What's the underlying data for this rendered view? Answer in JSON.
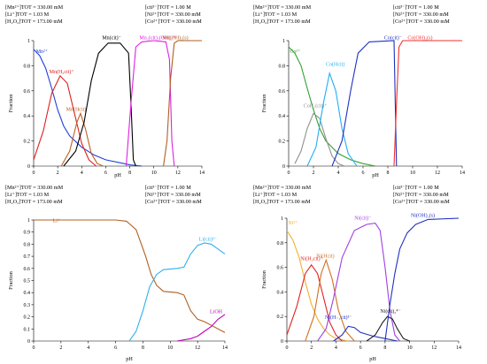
{
  "chart_data": [
    {
      "type": "line",
      "header_left": [
        "[Mn²⁺]TOT = 330.00 mM",
        "[Li⁺]TOT = 1.03 M",
        "[H₂O₂]TOT = 173.00 mM"
      ],
      "header_right": [
        "[cit³⁻]TOT = 1.00 M",
        "[Ni²⁺]TOT = 330.00 mM",
        "[Co²⁺]TOT = 330.00 mM"
      ],
      "xlabel": "pH",
      "ylabel": "Fraction",
      "xlim": [
        0,
        14
      ],
      "ylim": [
        0,
        1
      ],
      "xticks": [
        0,
        2,
        4,
        6,
        8,
        10,
        12,
        14
      ],
      "yticks": [
        0,
        0.2,
        0.4,
        0.6,
        0.8,
        1
      ],
      "series": [
        {
          "name": "Mn²⁺",
          "color": "#2040d8",
          "points": [
            [
              0,
              0.93
            ],
            [
              0.5,
              0.88
            ],
            [
              1,
              0.78
            ],
            [
              1.5,
              0.62
            ],
            [
              2,
              0.45
            ],
            [
              2.5,
              0.32
            ],
            [
              3,
              0.24
            ],
            [
              4,
              0.15
            ],
            [
              5,
              0.09
            ],
            [
              6,
              0.05
            ],
            [
              7,
              0.03
            ],
            [
              8,
              0.01
            ],
            [
              9,
              0
            ]
          ]
        },
        {
          "name": "Mn(H₂cit)⁺",
          "color": "#e02020",
          "points": [
            [
              0,
              0.05
            ],
            [
              0.8,
              0.28
            ],
            [
              1.5,
              0.58
            ],
            [
              2.2,
              0.72
            ],
            [
              2.8,
              0.66
            ],
            [
              3.4,
              0.42
            ],
            [
              4,
              0.18
            ],
            [
              4.6,
              0.05
            ],
            [
              5.2,
              0
            ]
          ]
        },
        {
          "name": "Mn(Hcit)",
          "color": "#c06020",
          "points": [
            [
              2.3,
              0
            ],
            [
              3,
              0.12
            ],
            [
              3.6,
              0.35
            ],
            [
              3.9,
              0.42
            ],
            [
              4.3,
              0.3
            ],
            [
              4.8,
              0.1
            ],
            [
              5.3,
              0.02
            ],
            [
              5.8,
              0
            ]
          ]
        },
        {
          "name": "Mn(cit)⁻",
          "color": "#000000",
          "points": [
            [
              2.5,
              0
            ],
            [
              3.5,
              0.12
            ],
            [
              4.2,
              0.35
            ],
            [
              4.8,
              0.68
            ],
            [
              5.4,
              0.9
            ],
            [
              6.2,
              0.98
            ],
            [
              7.2,
              0.98
            ],
            [
              7.9,
              0.9
            ],
            [
              8.1,
              0.5
            ],
            [
              8.3,
              0.05
            ],
            [
              8.5,
              0
            ]
          ]
        },
        {
          "name": "Mn₂(cit)₂(OH)₂⁴⁻",
          "color": "#e020e0",
          "points": [
            [
              7.7,
              0
            ],
            [
              8.1,
              0.5
            ],
            [
              8.5,
              0.95
            ],
            [
              9,
              0.99
            ],
            [
              10,
              1
            ],
            [
              11,
              0.99
            ],
            [
              11.3,
              0.85
            ],
            [
              11.5,
              0.2
            ],
            [
              11.7,
              0
            ]
          ]
        },
        {
          "name": "Mn(OH)₂(s)",
          "color": "#b06020",
          "points": [
            [
              10.8,
              0
            ],
            [
              11.1,
              0.2
            ],
            [
              11.4,
              0.7
            ],
            [
              11.7,
              0.98
            ],
            [
              12,
              1
            ],
            [
              14,
              1
            ]
          ]
        }
      ]
    },
    {
      "type": "line",
      "header_left": [
        "[Mn²⁺]TOT = 330.00 mM",
        "[Li⁺]TOT = 1.03 M",
        "[H₂O₂]TOT = 173.00 mM"
      ],
      "header_right": [
        "[cit³⁻]TOT = 1.00 M",
        "[Ni²⁺]TOT = 330.00 mM",
        "[Co²⁺]TOT = 330.00 mM"
      ],
      "xlabel": "pH",
      "ylabel": "Fraction",
      "xlim": [
        0,
        14
      ],
      "ylim": [
        0,
        1
      ],
      "xticks": [
        0,
        2,
        4,
        6,
        8,
        10,
        12,
        14
      ],
      "yticks": [
        0,
        0.2,
        0.4,
        0.6,
        0.8,
        1
      ],
      "series": [
        {
          "name": "Co²⁺",
          "color": "#30a030",
          "points": [
            [
              0,
              0.95
            ],
            [
              0.5,
              0.9
            ],
            [
              1,
              0.8
            ],
            [
              1.5,
              0.62
            ],
            [
              2,
              0.45
            ],
            [
              2.5,
              0.3
            ],
            [
              3,
              0.2
            ],
            [
              4,
              0.1
            ],
            [
              5,
              0.05
            ],
            [
              6,
              0.02
            ],
            [
              7,
              0
            ]
          ]
        },
        {
          "name": "CoH₂(cit)⁺",
          "color": "#909090",
          "points": [
            [
              0.5,
              0.02
            ],
            [
              1,
              0.12
            ],
            [
              1.5,
              0.3
            ],
            [
              2,
              0.42
            ],
            [
              2.5,
              0.38
            ],
            [
              3,
              0.22
            ],
            [
              3.5,
              0.08
            ],
            [
              4,
              0.02
            ],
            [
              4.5,
              0
            ]
          ]
        },
        {
          "name": "Co(Hcit)",
          "color": "#20b0f0",
          "points": [
            [
              1.5,
              0
            ],
            [
              2.2,
              0.15
            ],
            [
              2.8,
              0.5
            ],
            [
              3.3,
              0.74
            ],
            [
              3.8,
              0.6
            ],
            [
              4.3,
              0.3
            ],
            [
              4.8,
              0.1
            ],
            [
              5.5,
              0
            ]
          ]
        },
        {
          "name": "Co(cit)⁻",
          "color": "#2030c0",
          "points": [
            [
              3.5,
              0
            ],
            [
              4.3,
              0.2
            ],
            [
              5,
              0.6
            ],
            [
              5.6,
              0.9
            ],
            [
              6.5,
              0.99
            ],
            [
              8.5,
              1
            ],
            [
              8.6,
              0.5
            ],
            [
              8.7,
              0
            ]
          ]
        },
        {
          "name": "Co(OH)₂(s)",
          "color": "#f03030",
          "points": [
            [
              8.5,
              0
            ],
            [
              8.7,
              0.5
            ],
            [
              8.9,
              0.95
            ],
            [
              9.2,
              1
            ],
            [
              14,
              1
            ]
          ]
        }
      ]
    },
    {
      "type": "line",
      "header_left": [
        "[Mn²⁺]TOT = 330.00 mM",
        "[Li⁺]TOT = 1.03 M",
        "[H₂O₂]TOT = 173.00 mM"
      ],
      "header_right": [
        "[cit³⁻]TOT = 1.00 M",
        "[Ni²⁺]TOT = 330.00 mM",
        "[Co²⁺]TOT = 330.00 mM"
      ],
      "xlabel": "pH",
      "ylabel": "Fraction",
      "xlim": [
        0,
        14
      ],
      "ylim": [
        0,
        1
      ],
      "xticks": [
        0,
        2,
        4,
        6,
        8,
        10,
        12,
        14
      ],
      "yticks": [
        0,
        0.1,
        0.2,
        0.3,
        0.4,
        0.5,
        0.6,
        0.7,
        0.8,
        0.9,
        1
      ],
      "series": [
        {
          "name": "Li⁺",
          "color": "#b06020",
          "points": [
            [
              0,
              1
            ],
            [
              6,
              1
            ],
            [
              6.8,
              0.99
            ],
            [
              7.5,
              0.92
            ],
            [
              8.2,
              0.7
            ],
            [
              8.6,
              0.55
            ],
            [
              9,
              0.46
            ],
            [
              9.5,
              0.41
            ],
            [
              10.5,
              0.4
            ],
            [
              11,
              0.38
            ],
            [
              11.5,
              0.25
            ],
            [
              12,
              0.18
            ],
            [
              12.5,
              0.16
            ],
            [
              13,
              0.13
            ],
            [
              14,
              0.07
            ]
          ]
        },
        {
          "name": "Li(cit)²⁻",
          "color": "#30b0f0",
          "points": [
            [
              7,
              0
            ],
            [
              7.5,
              0.08
            ],
            [
              8,
              0.25
            ],
            [
              8.5,
              0.45
            ],
            [
              9,
              0.55
            ],
            [
              9.5,
              0.59
            ],
            [
              10.5,
              0.6
            ],
            [
              11,
              0.61
            ],
            [
              11.5,
              0.72
            ],
            [
              12,
              0.79
            ],
            [
              12.5,
              0.81
            ],
            [
              13,
              0.8
            ],
            [
              13.5,
              0.76
            ],
            [
              14,
              0.72
            ]
          ]
        },
        {
          "name": "LiOH",
          "color": "#c000c0",
          "points": [
            [
              10.5,
              0
            ],
            [
              11.5,
              0.02
            ],
            [
              12,
              0.04
            ],
            [
              12.5,
              0.08
            ],
            [
              13,
              0.12
            ],
            [
              13.5,
              0.18
            ],
            [
              14,
              0.22
            ]
          ]
        }
      ]
    },
    {
      "type": "line",
      "header_left": [
        "[Mn²⁺]TOT = 330.00 mM",
        "[Li⁺]TOT = 1.03 M",
        "[H₂O₂]TOT = 173.00 mM"
      ],
      "header_right": [
        "[cit³⁻]TOT = 1.00 M",
        "[Ni²⁺]TOT = 330.00 mM",
        "[Co²⁺]TOT = 330.00 mM"
      ],
      "xlabel": "pH",
      "ylabel": "Fraction",
      "xlim": [
        0,
        14
      ],
      "ylim": [
        0,
        1
      ],
      "xticks": [
        0,
        2,
        4,
        6,
        8,
        10,
        12,
        14
      ],
      "yticks": [
        0,
        0.2,
        0.4,
        0.6,
        0.8,
        1
      ],
      "series": [
        {
          "name": "Ni²⁺",
          "color": "#f0b030",
          "points": [
            [
              0,
              0.9
            ],
            [
              0.5,
              0.82
            ],
            [
              1,
              0.68
            ],
            [
              1.5,
              0.48
            ],
            [
              2,
              0.3
            ],
            [
              2.5,
              0.18
            ],
            [
              3,
              0.1
            ],
            [
              3.5,
              0.05
            ],
            [
              4,
              0.02
            ],
            [
              5,
              0
            ]
          ]
        },
        {
          "name": "Ni(H₂cit)⁺",
          "color": "#e02020",
          "points": [
            [
              0,
              0.05
            ],
            [
              0.8,
              0.28
            ],
            [
              1.5,
              0.55
            ],
            [
              2,
              0.62
            ],
            [
              2.5,
              0.55
            ],
            [
              3,
              0.35
            ],
            [
              3.5,
              0.15
            ],
            [
              4,
              0.05
            ],
            [
              4.5,
              0
            ]
          ]
        },
        {
          "name": "Ni(Hcit)",
          "color": "#d07020",
          "points": [
            [
              1.5,
              0
            ],
            [
              2.2,
              0.2
            ],
            [
              2.8,
              0.55
            ],
            [
              3.2,
              0.66
            ],
            [
              3.7,
              0.5
            ],
            [
              4.2,
              0.25
            ],
            [
              4.8,
              0.08
            ],
            [
              5.5,
              0
            ]
          ]
        },
        {
          "name": "Ni(cit)⁻",
          "color": "#a040e0",
          "points": [
            [
              2.5,
              0
            ],
            [
              3.2,
              0.1
            ],
            [
              3.8,
              0.35
            ],
            [
              4.5,
              0.68
            ],
            [
              5.5,
              0.9
            ],
            [
              6.5,
              0.95
            ],
            [
              7.2,
              0.96
            ],
            [
              7.6,
              0.9
            ],
            [
              8,
              0.6
            ],
            [
              8.4,
              0.25
            ],
            [
              8.8,
              0.05
            ],
            [
              9.2,
              0
            ]
          ]
        },
        {
          "name": "Ni(H₋₁cit)³⁻",
          "color": "#2030c0",
          "points": [
            [
              3.8,
              0
            ],
            [
              4.5,
              0.05
            ],
            [
              5,
              0.12
            ],
            [
              5.5,
              0.11
            ],
            [
              6,
              0.07
            ],
            [
              7,
              0.04
            ],
            [
              8,
              0.02
            ],
            [
              9,
              0
            ]
          ]
        },
        {
          "name": "Ni(cit)₂⁴⁻",
          "color": "#202020",
          "points": [
            [
              6.5,
              0
            ],
            [
              7.2,
              0.05
            ],
            [
              7.8,
              0.15
            ],
            [
              8.2,
              0.2
            ],
            [
              8.6,
              0.18
            ],
            [
              9,
              0.1
            ],
            [
              9.5,
              0.02
            ],
            [
              10,
              0
            ]
          ]
        },
        {
          "name": "Ni(OH)₂(s)",
          "color": "#2030c0",
          "points": [
            [
              8,
              0
            ],
            [
              8.4,
              0.3
            ],
            [
              8.8,
              0.55
            ],
            [
              9.2,
              0.75
            ],
            [
              9.8,
              0.88
            ],
            [
              10.5,
              0.95
            ],
            [
              11.5,
              0.99
            ],
            [
              14,
              1
            ]
          ]
        }
      ],
      "labels": [
        "Ni²⁺",
        "Ni(H₂cit)⁺",
        "Ni(Hcit)",
        "Ni(cit)⁻",
        "Ni(H₋₁cit)³⁻",
        "Ni(cit)₂⁴⁻",
        "Ni(OH)₂(s)"
      ]
    }
  ]
}
